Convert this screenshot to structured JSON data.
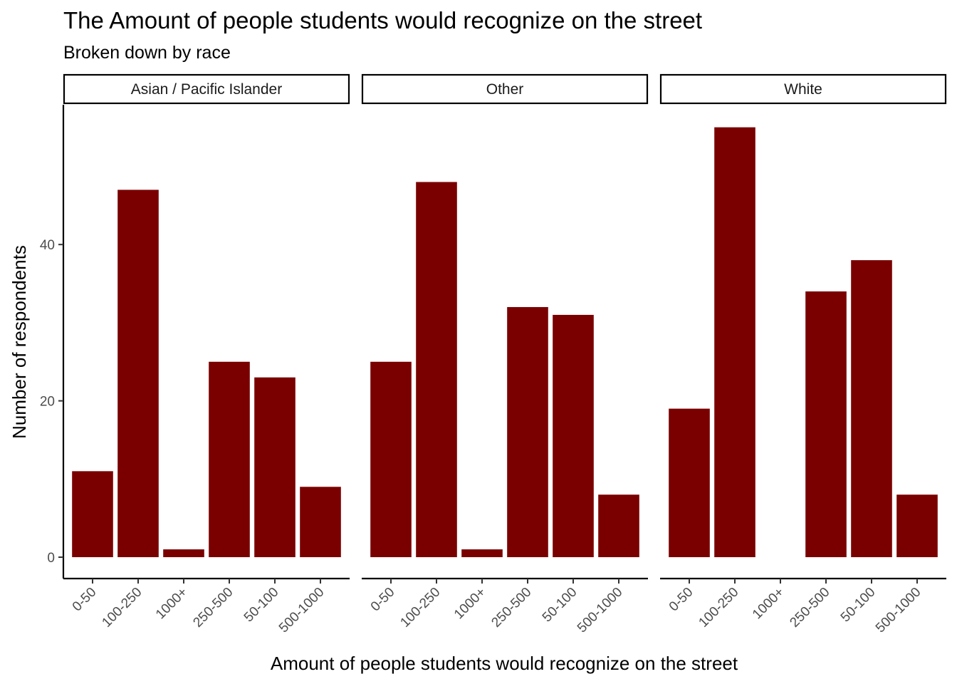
{
  "chart_data": {
    "type": "bar",
    "title": "The Amount of people students would recognize on the street",
    "subtitle": "Broken down by race",
    "xlabel": "Amount of people students would recognize on the street",
    "ylabel": "Number of respondents",
    "categories": [
      "0-50",
      "100-250",
      "1000+",
      "250-500",
      "50-100",
      "500-1000"
    ],
    "ylim": [
      0,
      58
    ],
    "yticks": [
      0,
      20,
      40
    ],
    "grid": false,
    "bar_color": "#7a0000",
    "facets": [
      {
        "name": "Asian / Pacific Islander",
        "values": [
          11,
          47,
          1,
          25,
          23,
          9
        ]
      },
      {
        "name": "Other",
        "values": [
          25,
          48,
          1,
          32,
          31,
          8
        ]
      },
      {
        "name": "White",
        "values": [
          19,
          55,
          0,
          34,
          38,
          8
        ]
      }
    ]
  }
}
